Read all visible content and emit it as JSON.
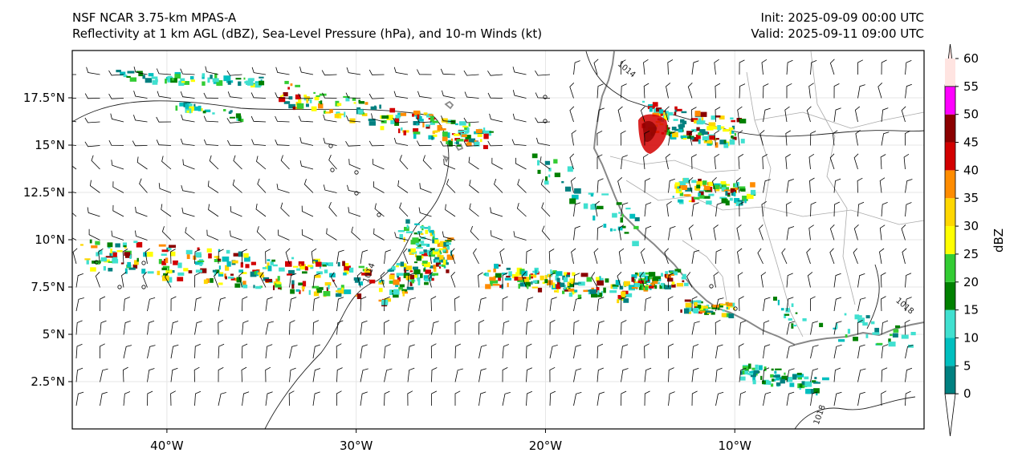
{
  "header": {
    "model": "NSF NCAR 3.75-km MPAS-A",
    "fields": "Reflectivity at 1 km AGL (dBZ), Sea-Level Pressure (hPa), and 10-m Winds (kt)",
    "init": "Init: 2025-09-09 00:00 UTC",
    "valid": "Valid: 2025-09-11 09:00 UTC"
  },
  "map": {
    "lon_range": [
      -45,
      0
    ],
    "lat_range": [
      0,
      20
    ],
    "lon_ticks": [
      {
        "value": -40,
        "label": "40°W"
      },
      {
        "value": -30,
        "label": "30°W"
      },
      {
        "value": -20,
        "label": "20°W"
      },
      {
        "value": -10,
        "label": "10°W"
      }
    ],
    "lat_ticks": [
      {
        "value": 17.5,
        "label": "17.5°N"
      },
      {
        "value": 15,
        "label": "15°N"
      },
      {
        "value": 12.5,
        "label": "12.5°N"
      },
      {
        "value": 10,
        "label": "10°N"
      },
      {
        "value": 7.5,
        "label": "7.5°N"
      },
      {
        "value": 5,
        "label": "5°N"
      },
      {
        "value": 2.5,
        "label": "2.5°N"
      }
    ],
    "isobar_labels": [
      {
        "text": "1014",
        "lon": -15.8,
        "lat": 18.9
      },
      {
        "text": "1014",
        "lon": -29.2,
        "lat": 8.2
      },
      {
        "text": "1018",
        "lon": -1.1,
        "lat": 6.4
      },
      {
        "text": "1018",
        "lon": -5.4,
        "lat": 0.7
      }
    ]
  },
  "colorbar": {
    "label": "dBZ",
    "ticks": [
      "0",
      "5",
      "10",
      "15",
      "20",
      "25",
      "30",
      "35",
      "40",
      "45",
      "50",
      "55",
      "60"
    ],
    "colors": [
      "#008080",
      "#00bfbf",
      "#40e0d0",
      "#008000",
      "#33cc33",
      "#ffff00",
      "#ffd700",
      "#ff8c00",
      "#d20000",
      "#8b0000",
      "#ff00ff",
      "#ffe4e1"
    ],
    "under_color": "#ffffff",
    "over_color": "#ffe4e1"
  }
}
